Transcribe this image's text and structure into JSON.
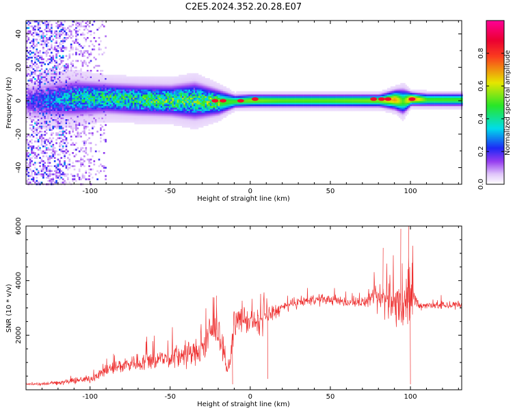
{
  "title": "C2E5.2024.352.20.28.E07",
  "chart_data": [
    {
      "type": "heatmap",
      "xlabel": "Height of straight line (km)",
      "ylabel": "Frequency (Hz)",
      "xlim": [
        -140,
        132
      ],
      "ylim": [
        -50,
        48
      ],
      "xticks": [
        -100,
        -50,
        0,
        50,
        100
      ],
      "yticks": [
        -40,
        -20,
        0,
        20,
        40
      ],
      "colorbar": {
        "label": "Normalized spectral amplitude",
        "range": [
          0.0,
          1.0
        ],
        "ticks": [
          0.0,
          0.2,
          0.4,
          0.6,
          0.8
        ],
        "tick_labels": [
          "0.0",
          "0.2",
          "0.4",
          "0.6",
          "0.8"
        ],
        "colormap": "rainbow (white-violet-blue-cyan-green-yellow-red-magenta)"
      },
      "band_profile": {
        "x": [
          -140,
          -110,
          -90,
          -70,
          -50,
          -35,
          -20,
          -10,
          0,
          20,
          50,
          80,
          90,
          95,
          100,
          110,
          132
        ],
        "center_hz": [
          0,
          2,
          2,
          1,
          0.5,
          0.5,
          -0.5,
          0,
          0.5,
          0.5,
          0.5,
          0.5,
          1,
          0,
          1.5,
          1,
          1
        ],
        "halfwidth_hz": [
          6,
          6,
          5,
          5,
          5,
          6,
          4,
          2,
          2,
          2,
          2,
          2,
          3,
          4,
          2,
          2,
          2
        ],
        "peak_amplitude": [
          0.15,
          0.35,
          0.4,
          0.42,
          0.45,
          0.45,
          0.5,
          0.5,
          0.55,
          0.52,
          0.52,
          0.55,
          0.7,
          0.5,
          0.75,
          0.5,
          0.5
        ]
      },
      "hot_spots": [
        {
          "x": -22,
          "y": 0,
          "amplitude": 0.95
        },
        {
          "x": -17,
          "y": 0,
          "amplitude": 0.95
        },
        {
          "x": -6,
          "y": 0,
          "amplitude": 0.95
        },
        {
          "x": 3,
          "y": 1,
          "amplitude": 0.95
        },
        {
          "x": 77,
          "y": 1,
          "amplitude": 0.95
        },
        {
          "x": 82,
          "y": 1,
          "amplitude": 0.95
        },
        {
          "x": 86,
          "y": 1,
          "amplitude": 0.95
        },
        {
          "x": 101,
          "y": 1,
          "amplitude": 0.95
        }
      ]
    },
    {
      "type": "line",
      "xlabel": "Height of straight line (km)",
      "ylabel": "SNR (10 * v/v)",
      "xlim": [
        -140,
        132
      ],
      "ylim": [
        0,
        6000
      ],
      "xticks": [
        -100,
        -50,
        0,
        50,
        100
      ],
      "yticks": [
        2000,
        4000,
        6000
      ],
      "color": "#ee3333",
      "series": [
        {
          "x": [
            -140,
            -120,
            -100,
            -90,
            -80,
            -70,
            -60,
            -50,
            -40,
            -30,
            -25,
            -21,
            -18,
            -14,
            -12,
            -10,
            -5,
            0,
            5,
            10,
            20,
            30,
            40,
            50,
            60,
            70,
            75,
            80,
            85,
            90,
            93,
            96,
            98,
            100,
            102,
            105,
            110,
            120,
            132
          ],
          "y": [
            200,
            250,
            400,
            700,
            900,
            1000,
            1100,
            1150,
            1300,
            1400,
            2100,
            2200,
            1800,
            600,
            1200,
            2500,
            2600,
            2500,
            2400,
            2700,
            3000,
            3200,
            3300,
            3300,
            3200,
            3200,
            3300,
            3300,
            3400,
            3200,
            3100,
            3100,
            3200,
            3200,
            3400,
            3100,
            3100,
            3100,
            3100
          ],
          "noise": [
            60,
            120,
            200,
            320,
            420,
            500,
            560,
            600,
            700,
            800,
            800,
            800,
            700,
            200,
            500,
            700,
            700,
            700,
            700,
            600,
            300,
            250,
            300,
            250,
            250,
            250,
            350,
            900,
            1300,
            1100,
            1000,
            1300,
            2200,
            2400,
            700,
            250,
            200,
            250,
            250
          ]
        }
      ],
      "annotations": [
        {
          "x": -21,
          "y": 3450
        },
        {
          "x": -11,
          "y": 200
        },
        {
          "x": 11,
          "y": 400
        },
        {
          "x": 83,
          "y": 5200
        },
        {
          "x": 94,
          "y": 5900
        },
        {
          "x": 99,
          "y": 6000
        },
        {
          "x": 100,
          "y": 200
        }
      ]
    }
  ]
}
